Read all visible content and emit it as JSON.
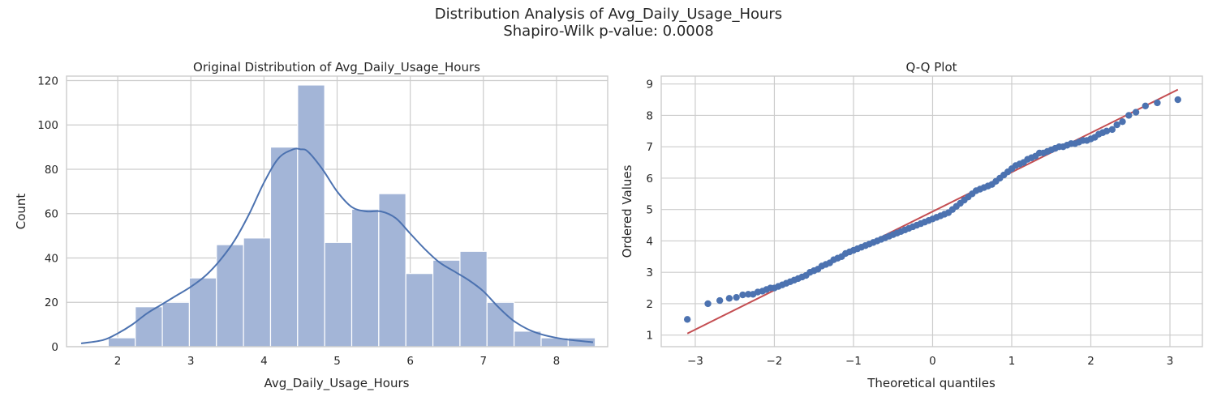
{
  "figure": {
    "title_line1": "Distribution Analysis of Avg_Daily_Usage_Hours",
    "title_line2": "Shapiro-Wilk p-value: 0.0008"
  },
  "colors": {
    "hist_fill": "#a3b5d7",
    "kde_line": "#4c72b0",
    "qq_points": "#4c72b0",
    "qq_line": "#c44e52",
    "grid": "#cccccc",
    "spine": "#cccccc"
  },
  "chart_data": [
    {
      "type": "bar",
      "subtype": "histogram",
      "title": "Original Distribution of Avg_Daily_Usage_Hours",
      "xlabel": "Avg_Daily_Usage_Hours",
      "ylabel": "Count",
      "xlim": [
        1.3,
        8.7
      ],
      "ylim": [
        0,
        122
      ],
      "xticks": [
        2,
        3,
        4,
        5,
        6,
        7,
        8
      ],
      "yticks": [
        0,
        20,
        40,
        60,
        80,
        100,
        120
      ],
      "grid": true,
      "bin_edges": [
        1.87,
        2.24,
        2.61,
        2.98,
        3.35,
        3.72,
        4.09,
        4.46,
        4.83,
        5.2,
        5.57,
        5.94,
        6.31,
        6.68,
        7.05,
        7.42,
        7.79,
        8.16,
        8.53
      ],
      "counts": [
        4,
        18,
        20,
        31,
        46,
        49,
        90,
        118,
        47,
        62,
        69,
        33,
        39,
        43,
        20,
        7,
        4,
        4
      ],
      "kde": {
        "x": [
          1.5,
          1.8,
          2.0,
          2.2,
          2.4,
          2.6,
          2.8,
          3.0,
          3.2,
          3.4,
          3.6,
          3.8,
          4.0,
          4.2,
          4.4,
          4.5,
          4.6,
          4.8,
          5.0,
          5.2,
          5.4,
          5.6,
          5.8,
          6.0,
          6.2,
          6.4,
          6.6,
          6.8,
          7.0,
          7.2,
          7.4,
          7.6,
          7.8,
          8.0,
          8.2,
          8.5
        ],
        "y": [
          1.5,
          3,
          6,
          10,
          15,
          19,
          23,
          27,
          32,
          39,
          48,
          60,
          74,
          85,
          89,
          89,
          88,
          80,
          70,
          63,
          61,
          61,
          58,
          51,
          44,
          38,
          34,
          30,
          25,
          18,
          12,
          8,
          5.5,
          4,
          3,
          2
        ]
      }
    },
    {
      "type": "scatter",
      "title": "Q-Q Plot",
      "xlabel": "Theoretical quantiles",
      "ylabel": "Ordered Values",
      "xlim": [
        -3.43,
        3.41
      ],
      "ylim": [
        0.63,
        9.25
      ],
      "xticks": [
        -3,
        -2,
        -1,
        0,
        1,
        2,
        3
      ],
      "yticks": [
        1,
        2,
        3,
        4,
        5,
        6,
        7,
        8,
        9
      ],
      "grid": true,
      "fit_line": {
        "x": [
          -3.1,
          3.1
        ],
        "y": [
          1.05,
          8.82
        ]
      },
      "points": {
        "x": [
          -3.1,
          -2.84,
          -2.69,
          -2.57,
          -2.48,
          -2.4,
          -2.33,
          -2.27,
          -2.21,
          -2.15,
          -2.1,
          -2.05,
          -2.0,
          -1.95,
          -1.9,
          -1.85,
          -1.8,
          -1.75,
          -1.7,
          -1.65,
          -1.6,
          -1.55,
          -1.5,
          -1.45,
          -1.4,
          -1.35,
          -1.3,
          -1.25,
          -1.2,
          -1.15,
          -1.1,
          -1.05,
          -1.0,
          -0.95,
          -0.9,
          -0.85,
          -0.8,
          -0.75,
          -0.7,
          -0.65,
          -0.6,
          -0.55,
          -0.5,
          -0.45,
          -0.4,
          -0.35,
          -0.3,
          -0.25,
          -0.2,
          -0.15,
          -0.1,
          -0.05,
          0.0,
          0.05,
          0.1,
          0.15,
          0.2,
          0.25,
          0.3,
          0.35,
          0.4,
          0.45,
          0.5,
          0.55,
          0.6,
          0.65,
          0.7,
          0.75,
          0.8,
          0.85,
          0.9,
          0.95,
          1.0,
          1.05,
          1.1,
          1.15,
          1.2,
          1.25,
          1.3,
          1.35,
          1.4,
          1.45,
          1.5,
          1.55,
          1.6,
          1.65,
          1.7,
          1.75,
          1.8,
          1.85,
          1.9,
          1.95,
          2.0,
          2.05,
          2.1,
          2.15,
          2.2,
          2.27,
          2.33,
          2.4,
          2.48,
          2.57,
          2.69,
          2.84,
          3.1
        ],
        "y": [
          1.5,
          2.0,
          2.1,
          2.17,
          2.2,
          2.28,
          2.3,
          2.3,
          2.37,
          2.4,
          2.45,
          2.5,
          2.5,
          2.55,
          2.6,
          2.65,
          2.7,
          2.75,
          2.8,
          2.85,
          2.9,
          3.0,
          3.05,
          3.1,
          3.2,
          3.25,
          3.3,
          3.4,
          3.45,
          3.5,
          3.6,
          3.65,
          3.7,
          3.75,
          3.8,
          3.85,
          3.9,
          3.95,
          4.0,
          4.05,
          4.1,
          4.15,
          4.2,
          4.25,
          4.3,
          4.35,
          4.4,
          4.45,
          4.5,
          4.55,
          4.6,
          4.65,
          4.7,
          4.75,
          4.8,
          4.85,
          4.9,
          5.0,
          5.1,
          5.2,
          5.3,
          5.4,
          5.5,
          5.6,
          5.65,
          5.7,
          5.75,
          5.8,
          5.9,
          6.0,
          6.1,
          6.2,
          6.3,
          6.4,
          6.45,
          6.5,
          6.6,
          6.65,
          6.7,
          6.8,
          6.8,
          6.85,
          6.9,
          6.95,
          7.0,
          7.0,
          7.05,
          7.1,
          7.1,
          7.15,
          7.2,
          7.2,
          7.25,
          7.3,
          7.4,
          7.45,
          7.5,
          7.55,
          7.7,
          7.8,
          8.0,
          8.1,
          8.3,
          8.4,
          8.5
        ]
      }
    }
  ]
}
